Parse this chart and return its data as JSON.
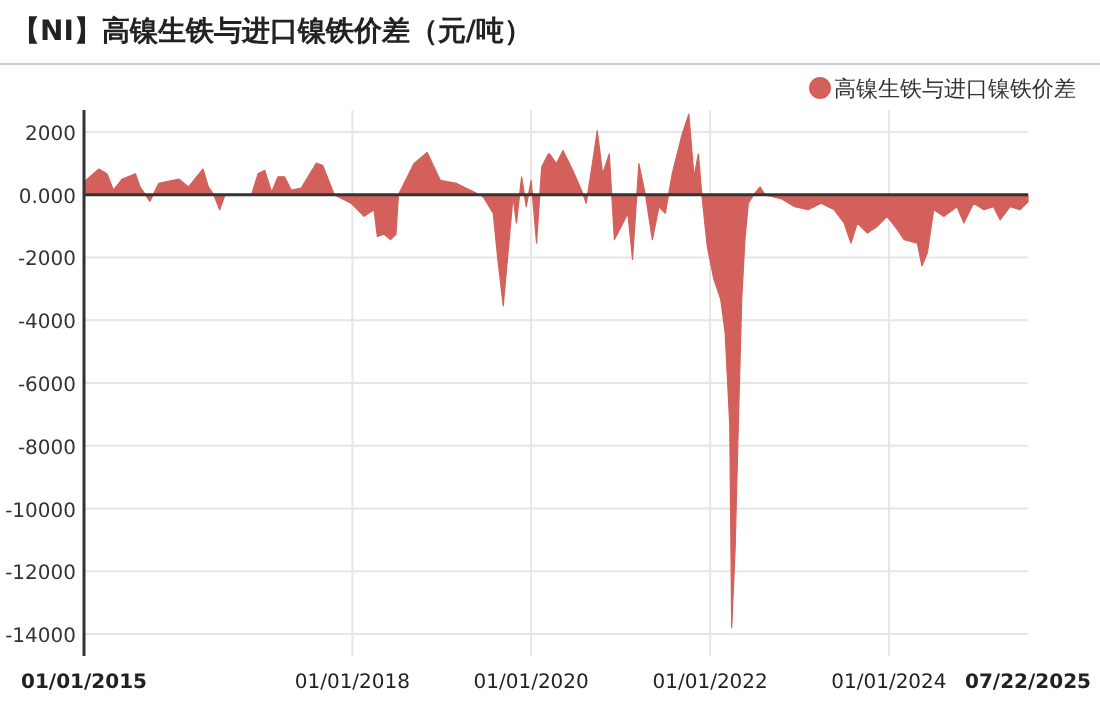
{
  "chart_data": {
    "type": "area",
    "title": "【NI】高镍生铁与进口镍铁价差（元/吨）",
    "x": [
      "2015-01-03",
      "2015-03-03",
      "2015-04-05",
      "2015-05-01",
      "2015-06-06",
      "2015-07-30",
      "2015-08-18",
      "2015-09-27",
      "2015-11-02",
      "2016-01-23",
      "2016-03-03",
      "2016-05-01",
      "2016-05-23",
      "2016-06-14",
      "2016-07-08",
      "2016-07-30",
      "2016-11-15",
      "2016-12-12",
      "2017-01-08",
      "2017-02-05",
      "2017-03-03",
      "2017-03-30",
      "2017-04-26",
      "2017-06-06",
      "2017-08-07",
      "2017-09-02",
      "2017-10-19",
      "2017-12-26",
      "2018-02-18",
      "2018-03-30",
      "2018-04-13",
      "2018-05-10",
      "2018-06-06",
      "2018-06-28",
      "2018-07-08",
      "2018-09-09",
      "2018-11-02",
      "2018-12-26",
      "2019-03-03",
      "2019-04-26",
      "2019-06-19",
      "2019-07-30",
      "2019-08-18",
      "2019-09-09",
      "2019-10-01",
      "2019-10-19",
      "2019-11-02",
      "2019-11-23",
      "2019-12-12",
      "2020-01-01",
      "2020-01-23",
      "2020-02-13",
      "2020-03-11",
      "2020-03-16",
      "2020-04-13",
      "2020-05-10",
      "2020-06-19",
      "2020-07-30",
      "2020-08-13",
      "2020-09-09",
      "2020-09-27",
      "2020-10-19",
      "2020-11-15",
      "2020-12-06",
      "2021-01-03",
      "2021-01-30",
      "2021-02-18",
      "2021-03-16",
      "2021-04-13",
      "2021-05-10",
      "2021-06-06",
      "2021-07-02",
      "2021-07-30",
      "2021-09-09",
      "2021-10-06",
      "2021-10-27",
      "2021-11-14",
      "2021-11-28",
      "2021-12-20",
      "2022-01-16",
      "2022-02-13",
      "2022-03-03",
      "2022-03-22",
      "2022-03-30",
      "2022-04-13",
      "2022-04-26",
      "2022-05-10",
      "2022-05-23",
      "2022-06-06",
      "2022-06-28",
      "2022-07-24",
      "2022-08-13",
      "2022-10-19",
      "2022-12-12",
      "2023-02-05",
      "2023-03-30",
      "2023-05-23",
      "2023-07-02",
      "2023-07-30",
      "2023-08-25",
      "2023-10-05",
      "2023-11-14",
      "2023-12-25",
      "2024-02-05",
      "2024-03-03",
      "2024-04-26",
      "2024-05-15",
      "2024-06-06",
      "2024-07-02",
      "2024-08-13",
      "2024-10-05",
      "2024-11-02",
      "2024-12-12",
      "2025-01-23",
      "2025-03-03",
      "2025-03-30",
      "2025-05-10",
      "2025-06-19",
      "2025-07-22"
    ],
    "series": [
      {
        "name": "高镍生铁与进口镍铁价差",
        "color": "#d4605c",
        "values": [
          420,
          820,
          670,
          150,
          500,
          670,
          250,
          -210,
          360,
          500,
          250,
          820,
          250,
          0,
          -480,
          0,
          0,
          670,
          780,
          80,
          570,
          570,
          150,
          210,
          1010,
          930,
          0,
          -270,
          -690,
          -480,
          -1330,
          -1260,
          -1430,
          -1260,
          0,
          990,
          1350,
          460,
          360,
          150,
          -60,
          -590,
          -2060,
          -3540,
          -1640,
          -60,
          -900,
          570,
          -380,
          460,
          -1540,
          880,
          1300,
          1300,
          990,
          1410,
          780,
          40,
          -270,
          1090,
          2040,
          670,
          1300,
          -1430,
          -1010,
          -590,
          -2060,
          990,
          -60,
          -1430,
          -380,
          -590,
          670,
          1940,
          2570,
          570,
          1300,
          0,
          -1640,
          -2690,
          -3330,
          -4380,
          -7330,
          -13800,
          -11300,
          -7330,
          -3330,
          -1430,
          -270,
          0,
          250,
          0,
          -130,
          -380,
          -480,
          -270,
          -480,
          -900,
          -1540,
          -900,
          -1220,
          -1010,
          -690,
          -1120,
          -1430,
          -1540,
          -2270,
          -1850,
          -480,
          -690,
          -380,
          -900,
          -270,
          -480,
          -380,
          -800,
          -380,
          -480,
          -230
        ]
      }
    ],
    "xlim": [
      "2015-01-01",
      "2025-07-22"
    ],
    "xticks": [
      {
        "value": "2015-01-01",
        "label": "01/01/2015"
      },
      {
        "value": "2018-01-01",
        "label": "01/01/2018"
      },
      {
        "value": "2020-01-01",
        "label": "01/01/2020"
      },
      {
        "value": "2022-01-01",
        "label": "01/01/2022"
      },
      {
        "value": "2024-01-01",
        "label": "01/01/2024"
      },
      {
        "value": "2025-07-22",
        "label": "07/22/2025"
      }
    ],
    "ylim": [
      -14700,
      2700
    ],
    "yticks": [
      2000,
      {
        "value": 0,
        "label": "0.000"
      },
      -2000,
      -4000,
      -6000,
      -8000,
      -10000,
      -12000,
      -14000
    ],
    "grid": true,
    "legend": "top right"
  }
}
